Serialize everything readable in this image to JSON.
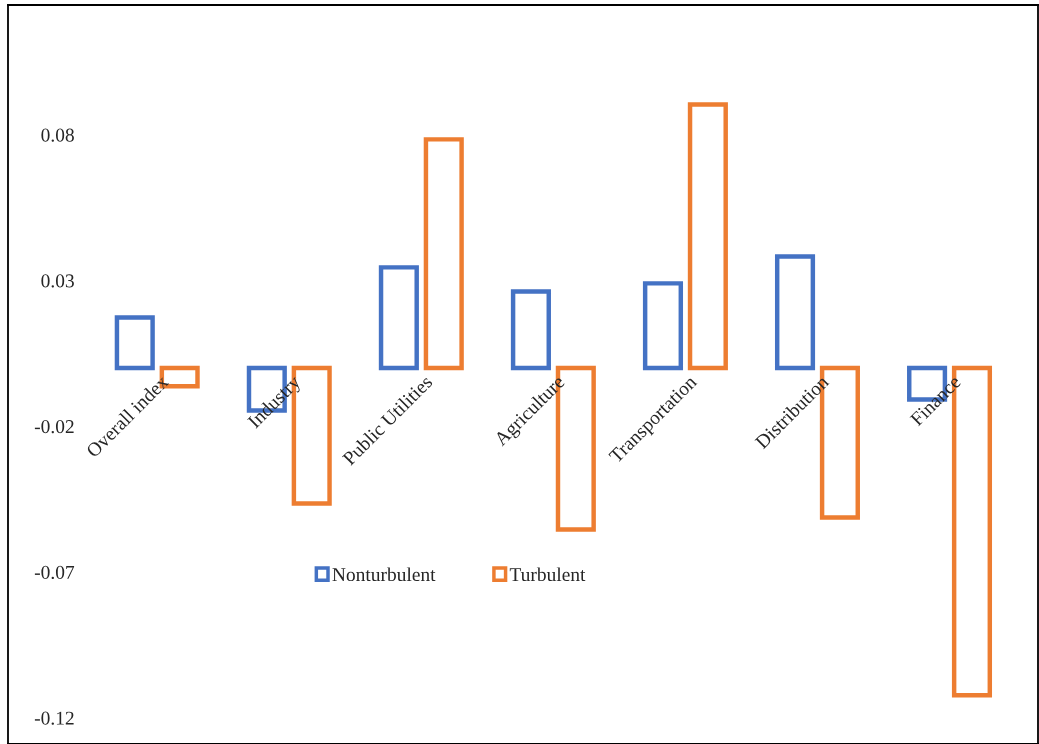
{
  "chart_data": {
    "type": "bar",
    "categories": [
      "Overall index",
      "Industry",
      "Public Utilities",
      "Agriculture",
      "Transportation",
      "Distribution",
      "Finance"
    ],
    "series": [
      {
        "name": "Nonturbulent",
        "color": "#4472c4",
        "values": [
          0.0173,
          -0.0146,
          0.0345,
          0.0262,
          0.029,
          0.0382,
          -0.0108
        ]
      },
      {
        "name": "Turbulent",
        "color": "#ed7d31",
        "values": [
          -0.0063,
          -0.0465,
          0.0784,
          -0.0554,
          0.0904,
          -0.0513,
          -0.1123
        ]
      }
    ],
    "ylim": [
      -0.129,
      0.1245
    ],
    "yticks": [
      -0.12,
      -0.07,
      -0.02,
      0.03,
      0.08
    ],
    "grid": false,
    "legend": "bottom"
  }
}
